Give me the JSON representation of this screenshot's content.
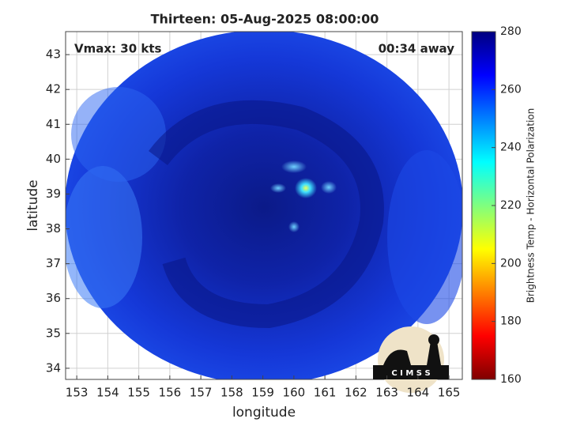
{
  "title": "Thirteen: 05-Aug-2025 08:00:00",
  "annotations": {
    "vmax": "Vmax: 30 kts",
    "away": "00:34 away"
  },
  "x_axis": {
    "label": "longitude",
    "lim": [
      152.64,
      165.43
    ],
    "ticks": [
      153,
      154,
      155,
      156,
      157,
      158,
      159,
      160,
      161,
      162,
      163,
      164,
      165
    ]
  },
  "y_axis": {
    "label": "latitude",
    "lim": [
      33.68,
      43.66
    ],
    "ticks": [
      34,
      35,
      36,
      37,
      38,
      39,
      40,
      41,
      42,
      43
    ]
  },
  "colorbar": {
    "label": "Brightness Temp - Horizontal Polarization",
    "lim": [
      160,
      280
    ],
    "ticks": [
      160,
      180,
      200,
      220,
      240,
      260,
      280
    ]
  },
  "logo": "C I M S S"
}
